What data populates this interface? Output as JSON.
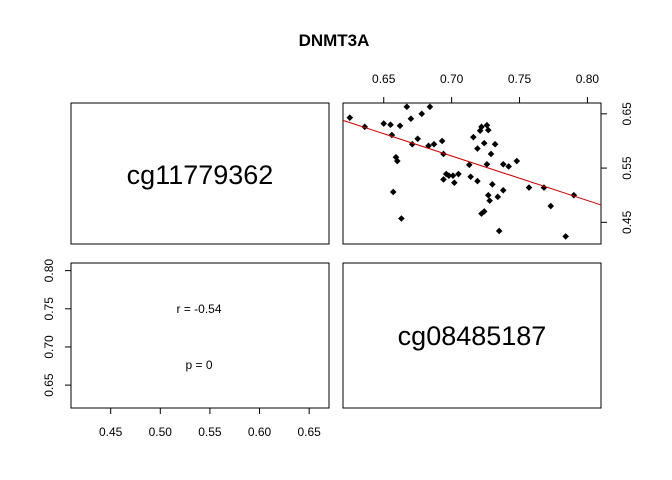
{
  "chart_data": {
    "type": "scatter",
    "title": "DNMT3A",
    "variables": [
      "cg11779362",
      "cg08485187"
    ],
    "x_axis": {
      "ticks": [
        0.65,
        0.7,
        0.75,
        0.8
      ],
      "tick_labels": [
        "0.65",
        "0.70",
        "0.75",
        "0.80"
      ],
      "range": [
        0.62,
        0.81
      ]
    },
    "y_axis": {
      "ticks": [
        0.45,
        0.55,
        0.65
      ],
      "tick_labels": [
        "0.45",
        "0.55",
        "0.65"
      ],
      "range": [
        0.41,
        0.67
      ]
    },
    "lower_x_axis": {
      "ticks": [
        0.45,
        0.5,
        0.55,
        0.6,
        0.65
      ],
      "tick_labels": [
        "0.45",
        "0.50",
        "0.55",
        "0.60",
        "0.65"
      ],
      "range": [
        0.41,
        0.67
      ]
    },
    "lower_y_axis": {
      "ticks": [
        0.65,
        0.7,
        0.75,
        0.8
      ],
      "tick_labels": [
        "0.65",
        "0.70",
        "0.75",
        "0.80"
      ],
      "range": [
        0.62,
        0.81
      ]
    },
    "correlation_text": "r = -0.54",
    "pvalue_text": "p = 0",
    "regression_line": {
      "start": [
        0.62,
        0.638
      ],
      "end": [
        0.81,
        0.482
      ],
      "color": "#cc0000"
    },
    "point_color": "#000000",
    "points": [
      [
        0.625,
        0.643
      ],
      [
        0.636,
        0.626
      ],
      [
        0.65,
        0.632
      ],
      [
        0.655,
        0.63
      ],
      [
        0.656,
        0.611
      ],
      [
        0.657,
        0.506
      ],
      [
        0.659,
        0.57
      ],
      [
        0.66,
        0.563
      ],
      [
        0.662,
        0.628
      ],
      [
        0.663,
        0.457
      ],
      [
        0.667,
        0.663
      ],
      [
        0.67,
        0.641
      ],
      [
        0.671,
        0.594
      ],
      [
        0.675,
        0.604
      ],
      [
        0.678,
        0.65
      ],
      [
        0.683,
        0.591
      ],
      [
        0.684,
        0.663
      ],
      [
        0.687,
        0.594
      ],
      [
        0.693,
        0.6
      ],
      [
        0.694,
        0.576
      ],
      [
        0.694,
        0.529
      ],
      [
        0.696,
        0.539
      ],
      [
        0.698,
        0.536
      ],
      [
        0.701,
        0.536
      ],
      [
        0.702,
        0.523
      ],
      [
        0.705,
        0.539
      ],
      [
        0.713,
        0.556
      ],
      [
        0.714,
        0.534
      ],
      [
        0.716,
        0.607
      ],
      [
        0.719,
        0.526
      ],
      [
        0.719,
        0.586
      ],
      [
        0.721,
        0.619
      ],
      [
        0.722,
        0.626
      ],
      [
        0.722,
        0.466
      ],
      [
        0.724,
        0.47
      ],
      [
        0.724,
        0.596
      ],
      [
        0.726,
        0.629
      ],
      [
        0.726,
        0.557
      ],
      [
        0.727,
        0.62
      ],
      [
        0.727,
        0.5
      ],
      [
        0.728,
        0.49
      ],
      [
        0.729,
        0.576
      ],
      [
        0.73,
        0.52
      ],
      [
        0.732,
        0.594
      ],
      [
        0.734,
        0.497
      ],
      [
        0.735,
        0.434
      ],
      [
        0.738,
        0.509
      ],
      [
        0.738,
        0.557
      ],
      [
        0.742,
        0.553
      ],
      [
        0.748,
        0.563
      ],
      [
        0.757,
        0.514
      ],
      [
        0.768,
        0.514
      ],
      [
        0.773,
        0.48
      ],
      [
        0.784,
        0.424
      ],
      [
        0.79,
        0.5
      ]
    ]
  }
}
